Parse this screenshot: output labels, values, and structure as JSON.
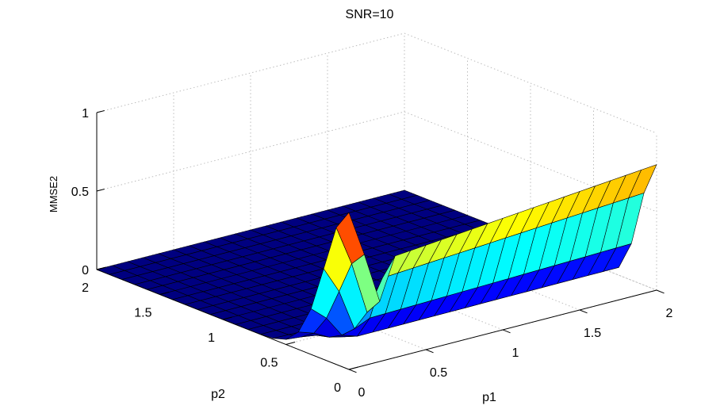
{
  "chart_data": {
    "type": "surface",
    "title": "SNR=10",
    "xlabel": "p1",
    "ylabel": "p2",
    "zlabel": "MMSE2",
    "xlim": [
      0,
      2
    ],
    "ylim": [
      0,
      2
    ],
    "zlim": [
      0,
      1
    ],
    "xticks": [
      "0",
      "0.5",
      "1",
      "1.5",
      "2"
    ],
    "yticks": [
      "0",
      "0.5",
      "1",
      "1.5",
      "2"
    ],
    "zticks": [
      "0",
      "0.5",
      "1"
    ],
    "grid": true,
    "colormap": "jet",
    "surface_description": "MMSE2 over (p1, p2) grid 0..2; ~0 for large p2, sharp peak 1 near p1=0,p2=0, ridge ~0.8 along p2=0 for p1>0.2"
  }
}
